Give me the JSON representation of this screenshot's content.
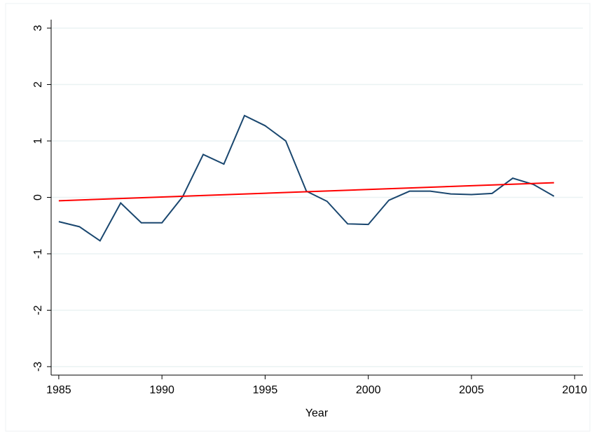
{
  "chart_data": {
    "type": "line",
    "x_label": "Year",
    "series": [
      {
        "color": "#1a476f",
        "x": [
          1985,
          1986,
          1987,
          1988,
          1989,
          1990,
          1991,
          1992,
          1993,
          1994,
          1995,
          1996,
          1997,
          1998,
          1999,
          2000,
          2001,
          2002,
          2003,
          2004,
          2005,
          2006,
          2007,
          2008,
          2009
        ],
        "values": [
          -0.43,
          -0.52,
          -0.77,
          -0.1,
          -0.45,
          -0.45,
          0.01,
          0.76,
          0.59,
          1.45,
          1.27,
          1.0,
          0.11,
          -0.07,
          -0.47,
          -0.48,
          -0.05,
          0.11,
          0.11,
          0.06,
          0.05,
          0.07,
          0.34,
          0.23,
          0.02
        ]
      },
      {
        "color": "#ff0000",
        "x": [
          1985,
          2009
        ],
        "values": [
          -0.06,
          0.26
        ]
      }
    ],
    "xlim": [
      1984.63,
      2010.4
    ],
    "xticks": [
      1985,
      1990,
      1995,
      2000,
      2005,
      2010
    ],
    "ylim": [
      -3.15,
      3.15
    ],
    "yticks": [
      -3,
      -2,
      -1,
      0,
      1,
      2,
      3
    ],
    "grid": true
  }
}
